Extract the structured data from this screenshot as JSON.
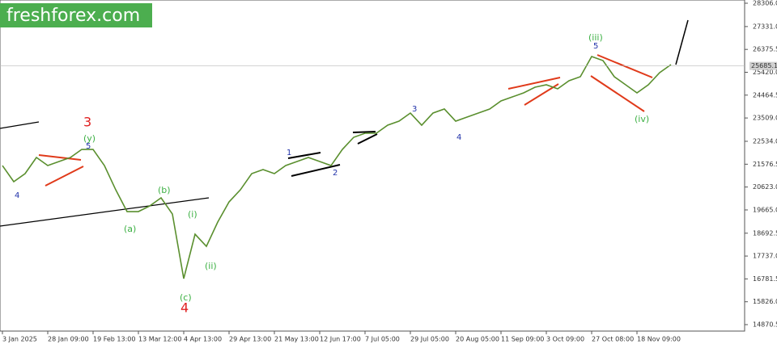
{
  "chart_data": {
    "type": "line",
    "logo": "freshforex.com",
    "categories": [
      "3 Jan 2025",
      null,
      null,
      null,
      "28 Jan 09:00",
      null,
      null,
      null,
      "19 Feb 13:00",
      null,
      null,
      null,
      "13 Mar 12:00",
      null,
      null,
      null,
      "4 Apr 13:00",
      null,
      null,
      null,
      "29 Apr 13:00",
      null,
      null,
      null,
      "21 May 13:00",
      null,
      null,
      null,
      "12 Jun 17:00",
      null,
      null,
      null,
      "7 Jul 05:00",
      null,
      null,
      null,
      "29 Jul 05:00",
      null,
      null,
      null,
      "20 Aug 05:00",
      null,
      null,
      null,
      "11 Sep 09:00",
      null,
      null,
      null,
      "3 Oct 09:00",
      null,
      null,
      null,
      "27 Oct 08:00",
      null,
      null,
      null,
      "18 Nov 09:00",
      null,
      null,
      null
    ],
    "values": [
      21520,
      20845,
      21183,
      21858,
      21520,
      21690,
      21858,
      22195,
      22195,
      21520,
      20507,
      19596,
      19596,
      19832,
      20170,
      19495,
      16794,
      18650,
      18144,
      19157,
      20001,
      20507,
      21183,
      21352,
      21183,
      21520,
      21690,
      21858,
      21690,
      21520,
      22195,
      22702,
      22871,
      22871,
      23208,
      23377,
      23715,
      23208,
      23715,
      23884,
      23377,
      23546,
      23715,
      23884,
      24221,
      24390,
      24559,
      24795,
      24896,
      24728,
      25065,
      25234,
      26078,
      25909,
      25234,
      24896,
      24559,
      24896,
      25403,
      25740
    ],
    "color": "#5a8f2e",
    "last_price": 25685.1,
    "ylim": [
      14870.5,
      28306
    ],
    "yticks": [
      {
        "value": 28306,
        "label": "28306.0"
      },
      {
        "value": 27331,
        "label": "27331.0"
      },
      26375.5,
      {
        "value": 25420,
        "label": "25420.0"
      },
      24464.5,
      {
        "value": 23509,
        "label": "23509.0"
      },
      {
        "value": 22534,
        "label": "22534.0"
      },
      21576.5,
      {
        "value": 20623,
        "label": "20623.0"
      },
      {
        "value": 19665,
        "label": "19665.0"
      },
      18692.5,
      {
        "value": 17737,
        "label": "17737.0"
      },
      16781.5,
      {
        "value": 15826,
        "label": "15826.0"
      },
      14870.5
    ],
    "annotations": [
      "3",
      "4",
      "(y)",
      "5",
      "4",
      "(a)",
      "(b)",
      "(c)",
      "(i)",
      "(ii)",
      "1",
      "2",
      "3",
      "4",
      "(iii)",
      "5",
      "(iv)"
    ]
  }
}
